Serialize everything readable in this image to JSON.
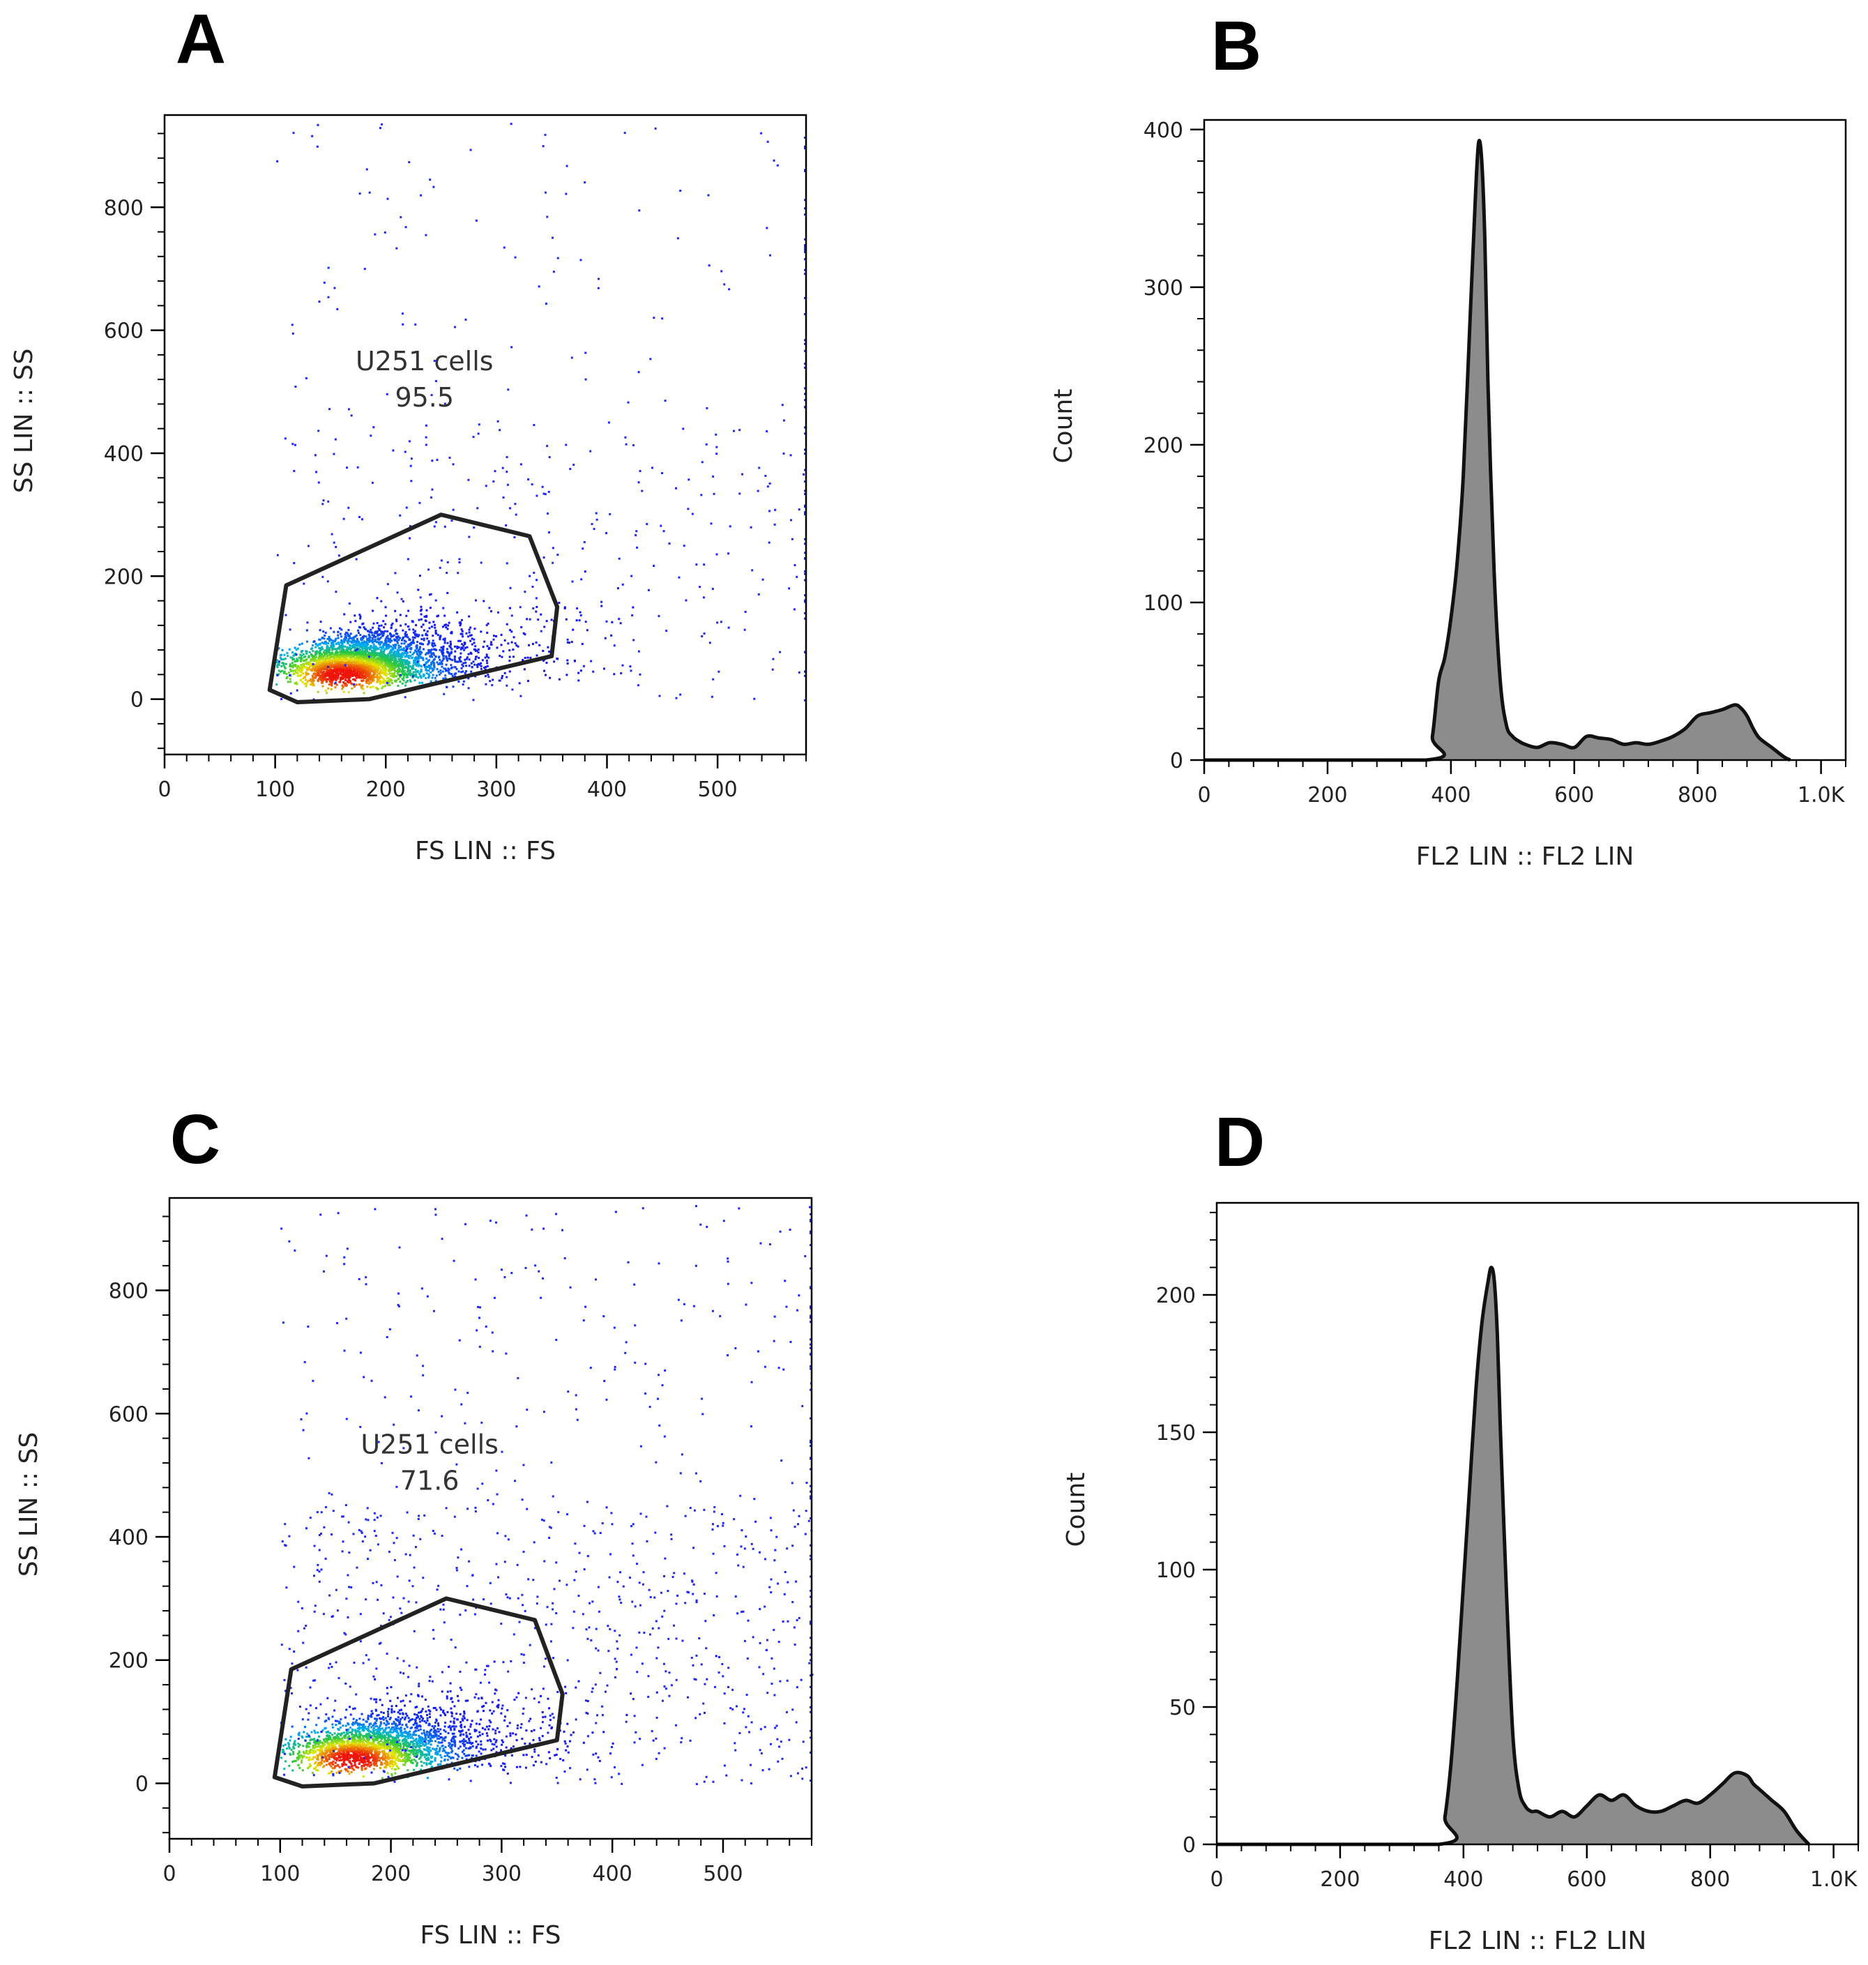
{
  "figure": {
    "panels": [
      "A",
      "B",
      "C",
      "D"
    ]
  },
  "chart_data": [
    {
      "panel": "A",
      "type": "scatter",
      "style": "density dot plot (blue→green→yellow→red)",
      "xlabel": "FS LIN :: FS",
      "ylabel": "SS LIN :: SS",
      "xlim": [
        0,
        580
      ],
      "ylim": [
        -90,
        950
      ],
      "xticks": [
        0,
        100,
        200,
        300,
        400,
        500
      ],
      "yticks": [
        0,
        200,
        400,
        600,
        800
      ],
      "gate": {
        "name": "U251 cells",
        "percent": "95.5",
        "polygon": [
          [
            95,
            15
          ],
          [
            120,
            -5
          ],
          [
            185,
            0
          ],
          [
            350,
            70
          ],
          [
            355,
            150
          ],
          [
            330,
            265
          ],
          [
            250,
            300
          ],
          [
            110,
            185
          ]
        ]
      },
      "population": {
        "center": [
          160,
          40
        ],
        "spread": [
          70,
          45
        ],
        "events": 3200,
        "outliers": 420
      }
    },
    {
      "panel": "B",
      "type": "area",
      "style": "histogram",
      "xlabel": "FL2 LIN :: FL2 LIN",
      "ylabel": "Count",
      "xlim": [
        0,
        1040
      ],
      "ylim": [
        0,
        400
      ],
      "xticks": [
        0,
        200,
        400,
        600,
        800,
        1000
      ],
      "xtick_labels": [
        "0",
        "200",
        "400",
        "600",
        "800",
        "1.0K"
      ],
      "yticks": [
        0,
        100,
        200,
        300,
        400
      ],
      "x": [
        0,
        360,
        370,
        380,
        390,
        400,
        410,
        420,
        430,
        440,
        445,
        450,
        455,
        460,
        470,
        480,
        490,
        500,
        510,
        520,
        540,
        560,
        580,
        600,
        620,
        640,
        660,
        680,
        700,
        720,
        740,
        760,
        780,
        800,
        820,
        840,
        860,
        870,
        880,
        890,
        900,
        920,
        940,
        950
      ],
      "values": [
        0,
        0,
        15,
        50,
        65,
        90,
        125,
        180,
        270,
        360,
        392,
        380,
        330,
        240,
        120,
        50,
        22,
        15,
        12,
        10,
        8,
        11,
        10,
        8,
        15,
        14,
        13,
        10,
        11,
        10,
        12,
        15,
        20,
        28,
        30,
        32,
        35,
        33,
        28,
        20,
        14,
        8,
        2,
        0
      ]
    },
    {
      "panel": "C",
      "type": "scatter",
      "style": "density dot plot (blue→green→yellow→red)",
      "xlabel": "FS LIN :: FS",
      "ylabel": "SS LIN :: SS",
      "xlim": [
        0,
        580
      ],
      "ylim": [
        -90,
        950
      ],
      "xticks": [
        0,
        100,
        200,
        300,
        400,
        500
      ],
      "yticks": [
        0,
        200,
        400,
        600,
        800
      ],
      "gate": {
        "name": "U251 cells",
        "percent": "71.6",
        "polygon": [
          [
            95,
            10
          ],
          [
            120,
            -5
          ],
          [
            185,
            0
          ],
          [
            350,
            70
          ],
          [
            355,
            145
          ],
          [
            330,
            265
          ],
          [
            250,
            300
          ],
          [
            110,
            185
          ]
        ]
      },
      "population": {
        "center": [
          165,
          40
        ],
        "spread": [
          75,
          45
        ],
        "events": 2400,
        "outliers": 900
      }
    },
    {
      "panel": "D",
      "type": "area",
      "style": "histogram",
      "xlabel": "FL2 LIN :: FL2 LIN",
      "ylabel": "Count",
      "xlim": [
        0,
        1040
      ],
      "ylim": [
        0,
        230
      ],
      "xticks": [
        0,
        200,
        400,
        600,
        800,
        1000
      ],
      "xtick_labels": [
        "0",
        "200",
        "400",
        "600",
        "800",
        "1.0K"
      ],
      "yticks": [
        0,
        50,
        100,
        150,
        200
      ],
      "x": [
        0,
        360,
        370,
        380,
        390,
        400,
        410,
        420,
        430,
        440,
        445,
        450,
        455,
        460,
        470,
        480,
        490,
        500,
        510,
        520,
        540,
        560,
        580,
        600,
        620,
        640,
        660,
        680,
        700,
        720,
        740,
        760,
        780,
        800,
        820,
        840,
        860,
        870,
        880,
        890,
        900,
        920,
        940,
        960
      ],
      "values": [
        0,
        0,
        10,
        30,
        60,
        95,
        130,
        165,
        190,
        205,
        210,
        205,
        185,
        150,
        90,
        40,
        20,
        14,
        12,
        12,
        10,
        12,
        10,
        14,
        18,
        16,
        18,
        14,
        12,
        12,
        14,
        16,
        15,
        18,
        22,
        26,
        25,
        22,
        20,
        18,
        16,
        12,
        5,
        0
      ]
    }
  ]
}
